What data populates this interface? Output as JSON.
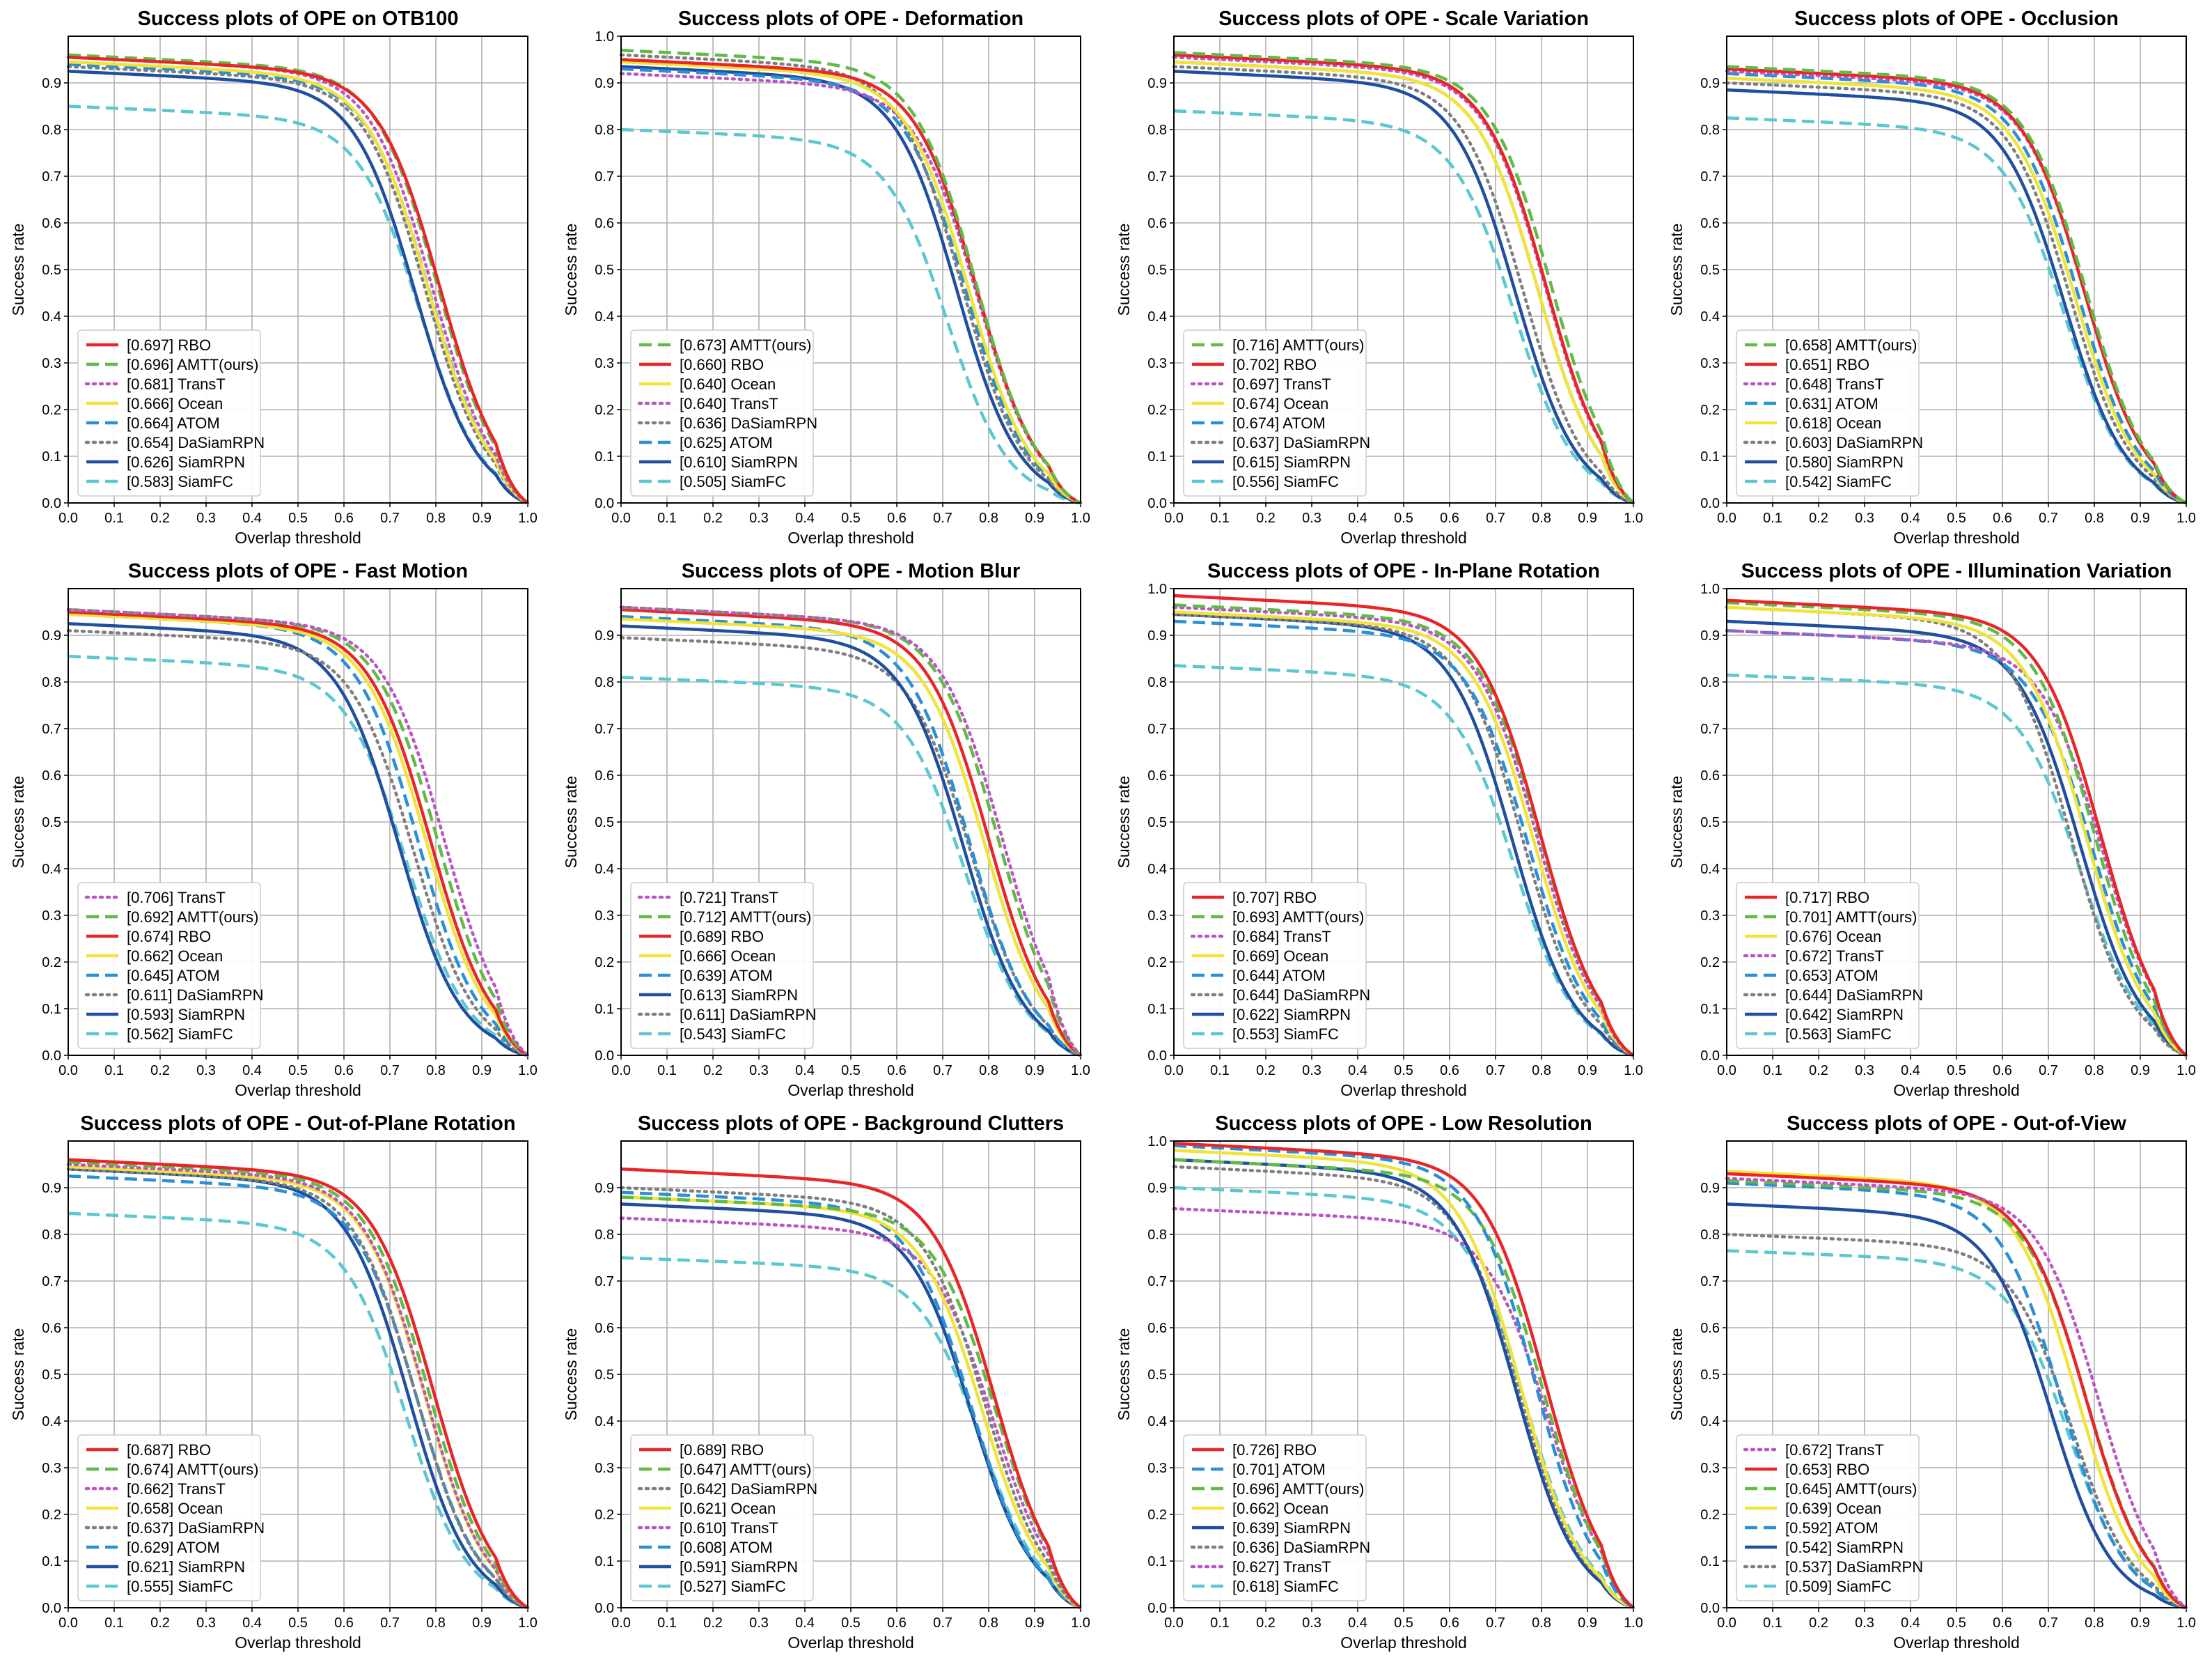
{
  "chart_data": [
    {
      "type": "line",
      "title": "Success plots of OPE on OTB100",
      "xlabel": "Overlap threshold",
      "ylabel": "Success rate",
      "xlim": [
        0,
        1
      ],
      "ylim": [
        0,
        1
      ],
      "xticks": [
        "0.0",
        "0.1",
        "0.2",
        "0.3",
        "0.4",
        "0.5",
        "0.6",
        "0.7",
        "0.8",
        "0.9",
        "1.0"
      ],
      "yticks": [
        "0.0",
        "0.1",
        "0.2",
        "0.3",
        "0.4",
        "0.5",
        "0.6",
        "0.7",
        "0.8",
        "0.9"
      ],
      "grid": true,
      "legend_position": "lower-left",
      "series": [
        {
          "name": "RBO",
          "score": "[0.697]",
          "start": 0.955
        },
        {
          "name": "AMTT(ours)",
          "score": "[0.696]",
          "start": 0.96
        },
        {
          "name": "TransT",
          "score": "[0.681]",
          "start": 0.955
        },
        {
          "name": "Ocean",
          "score": "[0.666]",
          "start": 0.945
        },
        {
          "name": "ATOM",
          "score": "[0.664]",
          "start": 0.94
        },
        {
          "name": "DaSiamRPN",
          "score": "[0.654]",
          "start": 0.935
        },
        {
          "name": "SiamRPN",
          "score": "[0.626]",
          "start": 0.925
        },
        {
          "name": "SiamFC",
          "score": "[0.583]",
          "start": 0.85
        }
      ]
    },
    {
      "type": "line",
      "title": "Success plots of OPE - Deformation",
      "xlabel": "Overlap threshold",
      "ylabel": "Success rate",
      "xlim": [
        0,
        1
      ],
      "ylim": [
        0,
        1
      ],
      "xticks": [
        "0.0",
        "0.1",
        "0.2",
        "0.3",
        "0.4",
        "0.5",
        "0.6",
        "0.7",
        "0.8",
        "0.9",
        "1.0"
      ],
      "yticks": [
        "0.0",
        "0.1",
        "0.2",
        "0.3",
        "0.4",
        "0.5",
        "0.6",
        "0.7",
        "0.8",
        "0.9",
        "1.0"
      ],
      "grid": true,
      "legend_position": "lower-left",
      "series": [
        {
          "name": "AMTT(ours)",
          "score": "[0.673]",
          "start": 0.97
        },
        {
          "name": "RBO",
          "score": "[0.660]",
          "start": 0.95
        },
        {
          "name": "Ocean",
          "score": "[0.640]",
          "start": 0.945
        },
        {
          "name": "TransT",
          "score": "[0.640]",
          "start": 0.92
        },
        {
          "name": "DaSiamRPN",
          "score": "[0.636]",
          "start": 0.96
        },
        {
          "name": "ATOM",
          "score": "[0.625]",
          "start": 0.93
        },
        {
          "name": "SiamRPN",
          "score": "[0.610]",
          "start": 0.935
        },
        {
          "name": "SiamFC",
          "score": "[0.505]",
          "start": 0.8
        }
      ]
    },
    {
      "type": "line",
      "title": "Success plots of OPE - Scale Variation",
      "xlabel": "Overlap threshold",
      "ylabel": "Success rate",
      "xlim": [
        0,
        1
      ],
      "ylim": [
        0,
        1
      ],
      "xticks": [
        "0.0",
        "0.1",
        "0.2",
        "0.3",
        "0.4",
        "0.5",
        "0.6",
        "0.7",
        "0.8",
        "0.9",
        "1.0"
      ],
      "yticks": [
        "0.0",
        "0.1",
        "0.2",
        "0.3",
        "0.4",
        "0.5",
        "0.6",
        "0.7",
        "0.8",
        "0.9"
      ],
      "grid": true,
      "legend_position": "lower-left",
      "series": [
        {
          "name": "AMTT(ours)",
          "score": "[0.716]",
          "start": 0.965
        },
        {
          "name": "RBO",
          "score": "[0.702]",
          "start": 0.96
        },
        {
          "name": "TransT",
          "score": "[0.697]",
          "start": 0.955
        },
        {
          "name": "Ocean",
          "score": "[0.674]",
          "start": 0.945
        },
        {
          "name": "ATOM",
          "score": "[0.674]",
          "start": 0.945
        },
        {
          "name": "DaSiamRPN",
          "score": "[0.637]",
          "start": 0.935
        },
        {
          "name": "SiamRPN",
          "score": "[0.615]",
          "start": 0.925
        },
        {
          "name": "SiamFC",
          "score": "[0.556]",
          "start": 0.84
        }
      ]
    },
    {
      "type": "line",
      "title": "Success plots of OPE - Occlusion",
      "xlabel": "Overlap threshold",
      "ylabel": "Success rate",
      "xlim": [
        0,
        1
      ],
      "ylim": [
        0,
        1
      ],
      "xticks": [
        "0.0",
        "0.1",
        "0.2",
        "0.3",
        "0.4",
        "0.5",
        "0.6",
        "0.7",
        "0.8",
        "0.9",
        "1.0"
      ],
      "yticks": [
        "0.0",
        "0.1",
        "0.2",
        "0.3",
        "0.4",
        "0.5",
        "0.6",
        "0.7",
        "0.8",
        "0.9"
      ],
      "grid": true,
      "legend_position": "lower-left",
      "series": [
        {
          "name": "AMTT(ours)",
          "score": "[0.658]",
          "start": 0.935
        },
        {
          "name": "RBO",
          "score": "[0.651]",
          "start": 0.93
        },
        {
          "name": "TransT",
          "score": "[0.648]",
          "start": 0.925
        },
        {
          "name": "ATOM",
          "score": "[0.631]",
          "start": 0.92
        },
        {
          "name": "Ocean",
          "score": "[0.618]",
          "start": 0.91
        },
        {
          "name": "DaSiamRPN",
          "score": "[0.603]",
          "start": 0.9
        },
        {
          "name": "SiamRPN",
          "score": "[0.580]",
          "start": 0.885
        },
        {
          "name": "SiamFC",
          "score": "[0.542]",
          "start": 0.825
        }
      ]
    },
    {
      "type": "line",
      "title": "Success plots of OPE - Fast Motion",
      "xlabel": "Overlap threshold",
      "ylabel": "Success rate",
      "xlim": [
        0,
        1
      ],
      "ylim": [
        0,
        1
      ],
      "xticks": [
        "0.0",
        "0.1",
        "0.2",
        "0.3",
        "0.4",
        "0.5",
        "0.6",
        "0.7",
        "0.8",
        "0.9",
        "1.0"
      ],
      "yticks": [
        "0.0",
        "0.1",
        "0.2",
        "0.3",
        "0.4",
        "0.5",
        "0.6",
        "0.7",
        "0.8",
        "0.9"
      ],
      "grid": true,
      "legend_position": "lower-left",
      "series": [
        {
          "name": "TransT",
          "score": "[0.706]",
          "start": 0.955
        },
        {
          "name": "AMTT(ours)",
          "score": "[0.692]",
          "start": 0.955
        },
        {
          "name": "RBO",
          "score": "[0.674]",
          "start": 0.95
        },
        {
          "name": "Ocean",
          "score": "[0.662]",
          "start": 0.945
        },
        {
          "name": "ATOM",
          "score": "[0.645]",
          "start": 0.945
        },
        {
          "name": "DaSiamRPN",
          "score": "[0.611]",
          "start": 0.91
        },
        {
          "name": "SiamRPN",
          "score": "[0.593]",
          "start": 0.925
        },
        {
          "name": "SiamFC",
          "score": "[0.562]",
          "start": 0.855
        }
      ]
    },
    {
      "type": "line",
      "title": "Success plots of OPE - Motion Blur",
      "xlabel": "Overlap threshold",
      "ylabel": "Success rate",
      "xlim": [
        0,
        1
      ],
      "ylim": [
        0,
        1
      ],
      "xticks": [
        "0.0",
        "0.1",
        "0.2",
        "0.3",
        "0.4",
        "0.5",
        "0.6",
        "0.7",
        "0.8",
        "0.9",
        "1.0"
      ],
      "yticks": [
        "0.0",
        "0.1",
        "0.2",
        "0.3",
        "0.4",
        "0.5",
        "0.6",
        "0.7",
        "0.8",
        "0.9"
      ],
      "grid": true,
      "legend_position": "lower-left",
      "series": [
        {
          "name": "TransT",
          "score": "[0.721]",
          "start": 0.96
        },
        {
          "name": "AMTT(ours)",
          "score": "[0.712]",
          "start": 0.96
        },
        {
          "name": "RBO",
          "score": "[0.689]",
          "start": 0.955
        },
        {
          "name": "Ocean",
          "score": "[0.666]",
          "start": 0.935
        },
        {
          "name": "ATOM",
          "score": "[0.639]",
          "start": 0.94
        },
        {
          "name": "SiamRPN",
          "score": "[0.613]",
          "start": 0.92
        },
        {
          "name": "DaSiamRPN",
          "score": "[0.611]",
          "start": 0.895
        },
        {
          "name": "SiamFC",
          "score": "[0.543]",
          "start": 0.81
        }
      ]
    },
    {
      "type": "line",
      "title": "Success plots of OPE - In-Plane Rotation",
      "xlabel": "Overlap threshold",
      "ylabel": "Success rate",
      "xlim": [
        0,
        1
      ],
      "ylim": [
        0,
        1
      ],
      "xticks": [
        "0.0",
        "0.1",
        "0.2",
        "0.3",
        "0.4",
        "0.5",
        "0.6",
        "0.7",
        "0.8",
        "0.9",
        "1.0"
      ],
      "yticks": [
        "0.0",
        "0.1",
        "0.2",
        "0.3",
        "0.4",
        "0.5",
        "0.6",
        "0.7",
        "0.8",
        "0.9",
        "1.0"
      ],
      "grid": true,
      "legend_position": "lower-left",
      "series": [
        {
          "name": "RBO",
          "score": "[0.707]",
          "start": 0.985
        },
        {
          "name": "AMTT(ours)",
          "score": "[0.693]",
          "start": 0.965
        },
        {
          "name": "TransT",
          "score": "[0.684]",
          "start": 0.96
        },
        {
          "name": "Ocean",
          "score": "[0.669]",
          "start": 0.95
        },
        {
          "name": "ATOM",
          "score": "[0.644]",
          "start": 0.93
        },
        {
          "name": "DaSiamRPN",
          "score": "[0.644]",
          "start": 0.945
        },
        {
          "name": "SiamRPN",
          "score": "[0.622]",
          "start": 0.945
        },
        {
          "name": "SiamFC",
          "score": "[0.553]",
          "start": 0.835
        }
      ]
    },
    {
      "type": "line",
      "title": "Success plots of OPE - Illumination Variation",
      "xlabel": "Overlap threshold",
      "ylabel": "Success rate",
      "xlim": [
        0,
        1
      ],
      "ylim": [
        0,
        1
      ],
      "xticks": [
        "0.0",
        "0.1",
        "0.2",
        "0.3",
        "0.4",
        "0.5",
        "0.6",
        "0.7",
        "0.8",
        "0.9",
        "1.0"
      ],
      "yticks": [
        "0.0",
        "0.1",
        "0.2",
        "0.3",
        "0.4",
        "0.5",
        "0.6",
        "0.7",
        "0.8",
        "0.9",
        "1.0"
      ],
      "grid": true,
      "legend_position": "lower-left",
      "series": [
        {
          "name": "RBO",
          "score": "[0.717]",
          "start": 0.975
        },
        {
          "name": "AMTT(ours)",
          "score": "[0.701]",
          "start": 0.97
        },
        {
          "name": "Ocean",
          "score": "[0.676]",
          "start": 0.96
        },
        {
          "name": "TransT",
          "score": "[0.672]",
          "start": 0.91
        },
        {
          "name": "ATOM",
          "score": "[0.653]",
          "start": 0.91
        },
        {
          "name": "DaSiamRPN",
          "score": "[0.644]",
          "start": 0.96
        },
        {
          "name": "SiamRPN",
          "score": "[0.642]",
          "start": 0.93
        },
        {
          "name": "SiamFC",
          "score": "[0.563]",
          "start": 0.815
        }
      ]
    },
    {
      "type": "line",
      "title": "Success plots of OPE - Out-of-Plane Rotation",
      "xlabel": "Overlap threshold",
      "ylabel": "Success rate",
      "xlim": [
        0,
        1
      ],
      "ylim": [
        0,
        1
      ],
      "xticks": [
        "0.0",
        "0.1",
        "0.2",
        "0.3",
        "0.4",
        "0.5",
        "0.6",
        "0.7",
        "0.8",
        "0.9",
        "1.0"
      ],
      "yticks": [
        "0.0",
        "0.1",
        "0.2",
        "0.3",
        "0.4",
        "0.5",
        "0.6",
        "0.7",
        "0.8",
        "0.9"
      ],
      "grid": true,
      "legend_position": "lower-left",
      "series": [
        {
          "name": "RBO",
          "score": "[0.687]",
          "start": 0.96
        },
        {
          "name": "AMTT(ours)",
          "score": "[0.674]",
          "start": 0.955
        },
        {
          "name": "TransT",
          "score": "[0.662]",
          "start": 0.95
        },
        {
          "name": "Ocean",
          "score": "[0.658]",
          "start": 0.945
        },
        {
          "name": "DaSiamRPN",
          "score": "[0.637]",
          "start": 0.94
        },
        {
          "name": "ATOM",
          "score": "[0.629]",
          "start": 0.925
        },
        {
          "name": "SiamRPN",
          "score": "[0.621]",
          "start": 0.94
        },
        {
          "name": "SiamFC",
          "score": "[0.555]",
          "start": 0.845
        }
      ]
    },
    {
      "type": "line",
      "title": "Success plots of OPE - Background Clutters",
      "xlabel": "Overlap threshold",
      "ylabel": "Success rate",
      "xlim": [
        0,
        1
      ],
      "ylim": [
        0,
        1
      ],
      "xticks": [
        "0.0",
        "0.1",
        "0.2",
        "0.3",
        "0.4",
        "0.5",
        "0.6",
        "0.7",
        "0.8",
        "0.9",
        "1.0"
      ],
      "yticks": [
        "0.0",
        "0.1",
        "0.2",
        "0.3",
        "0.4",
        "0.5",
        "0.6",
        "0.7",
        "0.8",
        "0.9"
      ],
      "grid": true,
      "legend_position": "lower-left",
      "series": [
        {
          "name": "RBO",
          "score": "[0.689]",
          "start": 0.94
        },
        {
          "name": "AMTT(ours)",
          "score": "[0.647]",
          "start": 0.88
        },
        {
          "name": "DaSiamRPN",
          "score": "[0.642]",
          "start": 0.9
        },
        {
          "name": "Ocean",
          "score": "[0.621]",
          "start": 0.88
        },
        {
          "name": "TransT",
          "score": "[0.610]",
          "start": 0.835
        },
        {
          "name": "ATOM",
          "score": "[0.608]",
          "start": 0.89
        },
        {
          "name": "SiamRPN",
          "score": "[0.591]",
          "start": 0.865
        },
        {
          "name": "SiamFC",
          "score": "[0.527]",
          "start": 0.75
        }
      ]
    },
    {
      "type": "line",
      "title": "Success plots of OPE - Low Resolution",
      "xlabel": "Overlap threshold",
      "ylabel": "Success rate",
      "xlim": [
        0,
        1
      ],
      "ylim": [
        0,
        1
      ],
      "xticks": [
        "0.0",
        "0.1",
        "0.2",
        "0.3",
        "0.4",
        "0.5",
        "0.6",
        "0.7",
        "0.8",
        "0.9",
        "1.0"
      ],
      "yticks": [
        "0.0",
        "0.1",
        "0.2",
        "0.3",
        "0.4",
        "0.5",
        "0.6",
        "0.7",
        "0.8",
        "0.9",
        "1.0"
      ],
      "grid": true,
      "legend_position": "lower-left",
      "series": [
        {
          "name": "RBO",
          "score": "[0.726]",
          "start": 0.995
        },
        {
          "name": "ATOM",
          "score": "[0.701]",
          "start": 0.99
        },
        {
          "name": "AMTT(ours)",
          "score": "[0.696]",
          "start": 0.96
        },
        {
          "name": "Ocean",
          "score": "[0.662]",
          "start": 0.98
        },
        {
          "name": "SiamRPN",
          "score": "[0.639]",
          "start": 0.96
        },
        {
          "name": "DaSiamRPN",
          "score": "[0.636]",
          "start": 0.945
        },
        {
          "name": "TransT",
          "score": "[0.627]",
          "start": 0.855
        },
        {
          "name": "SiamFC",
          "score": "[0.618]",
          "start": 0.9
        }
      ]
    },
    {
      "type": "line",
      "title": "Success plots of OPE - Out-of-View",
      "xlabel": "Overlap threshold",
      "ylabel": "Success rate",
      "xlim": [
        0,
        1
      ],
      "ylim": [
        0,
        1
      ],
      "xticks": [
        "0.0",
        "0.1",
        "0.2",
        "0.3",
        "0.4",
        "0.5",
        "0.6",
        "0.7",
        "0.8",
        "0.9",
        "1.0"
      ],
      "yticks": [
        "0.0",
        "0.1",
        "0.2",
        "0.3",
        "0.4",
        "0.5",
        "0.6",
        "0.7",
        "0.8",
        "0.9"
      ],
      "grid": true,
      "legend_position": "lower-left",
      "series": [
        {
          "name": "TransT",
          "score": "[0.672]",
          "start": 0.92
        },
        {
          "name": "RBO",
          "score": "[0.653]",
          "start": 0.93
        },
        {
          "name": "AMTT(ours)",
          "score": "[0.645]",
          "start": 0.915
        },
        {
          "name": "Ocean",
          "score": "[0.639]",
          "start": 0.935
        },
        {
          "name": "ATOM",
          "score": "[0.592]",
          "start": 0.91
        },
        {
          "name": "SiamRPN",
          "score": "[0.542]",
          "start": 0.865
        },
        {
          "name": "DaSiamRPN",
          "score": "[0.537]",
          "start": 0.8
        },
        {
          "name": "SiamFC",
          "score": "[0.509]",
          "start": 0.765
        }
      ]
    }
  ],
  "styles": {
    "RBO": {
      "color": "#e8262a",
      "dash": "solid"
    },
    "AMTT(ours)": {
      "color": "#62ba46",
      "dash": "dashed"
    },
    "TransT": {
      "color": "#bc55c4",
      "dash": "dotted"
    },
    "Ocean": {
      "color": "#f0e43a",
      "dash": "solid"
    },
    "ATOM": {
      "color": "#2a8fd4",
      "dash": "dashed"
    },
    "DaSiamRPN": {
      "color": "#7f7f7f",
      "dash": "dotted"
    },
    "SiamRPN": {
      "color": "#1f4f9e",
      "dash": "solid"
    },
    "SiamFC": {
      "color": "#5bc7d1",
      "dash": "dashed"
    }
  }
}
